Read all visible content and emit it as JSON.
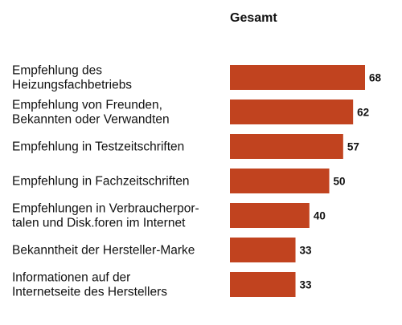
{
  "chart_data": {
    "type": "bar",
    "orientation": "horizontal",
    "series_title": "Gesamt",
    "categories": [
      [
        "Empfehlung des",
        "Heizungsfachbetriebs"
      ],
      [
        "Empfehlung von Freunden,",
        "Bekannten oder Verwandten"
      ],
      [
        "Empfehlung in Testzeitschriften"
      ],
      [
        "Empfehlung in Fachzeitschriften"
      ],
      [
        "Empfehlungen in Verbraucherpor-",
        "talen und Disk.foren im Internet"
      ],
      [
        "Bekanntheit der Hersteller-Marke"
      ],
      [
        "Informationen auf der",
        "Internetseite des Herstellers"
      ]
    ],
    "values": [
      68,
      62,
      57,
      50,
      40,
      33,
      33
    ],
    "bar_color": "#c1431f",
    "grid": false,
    "legend": "none"
  }
}
